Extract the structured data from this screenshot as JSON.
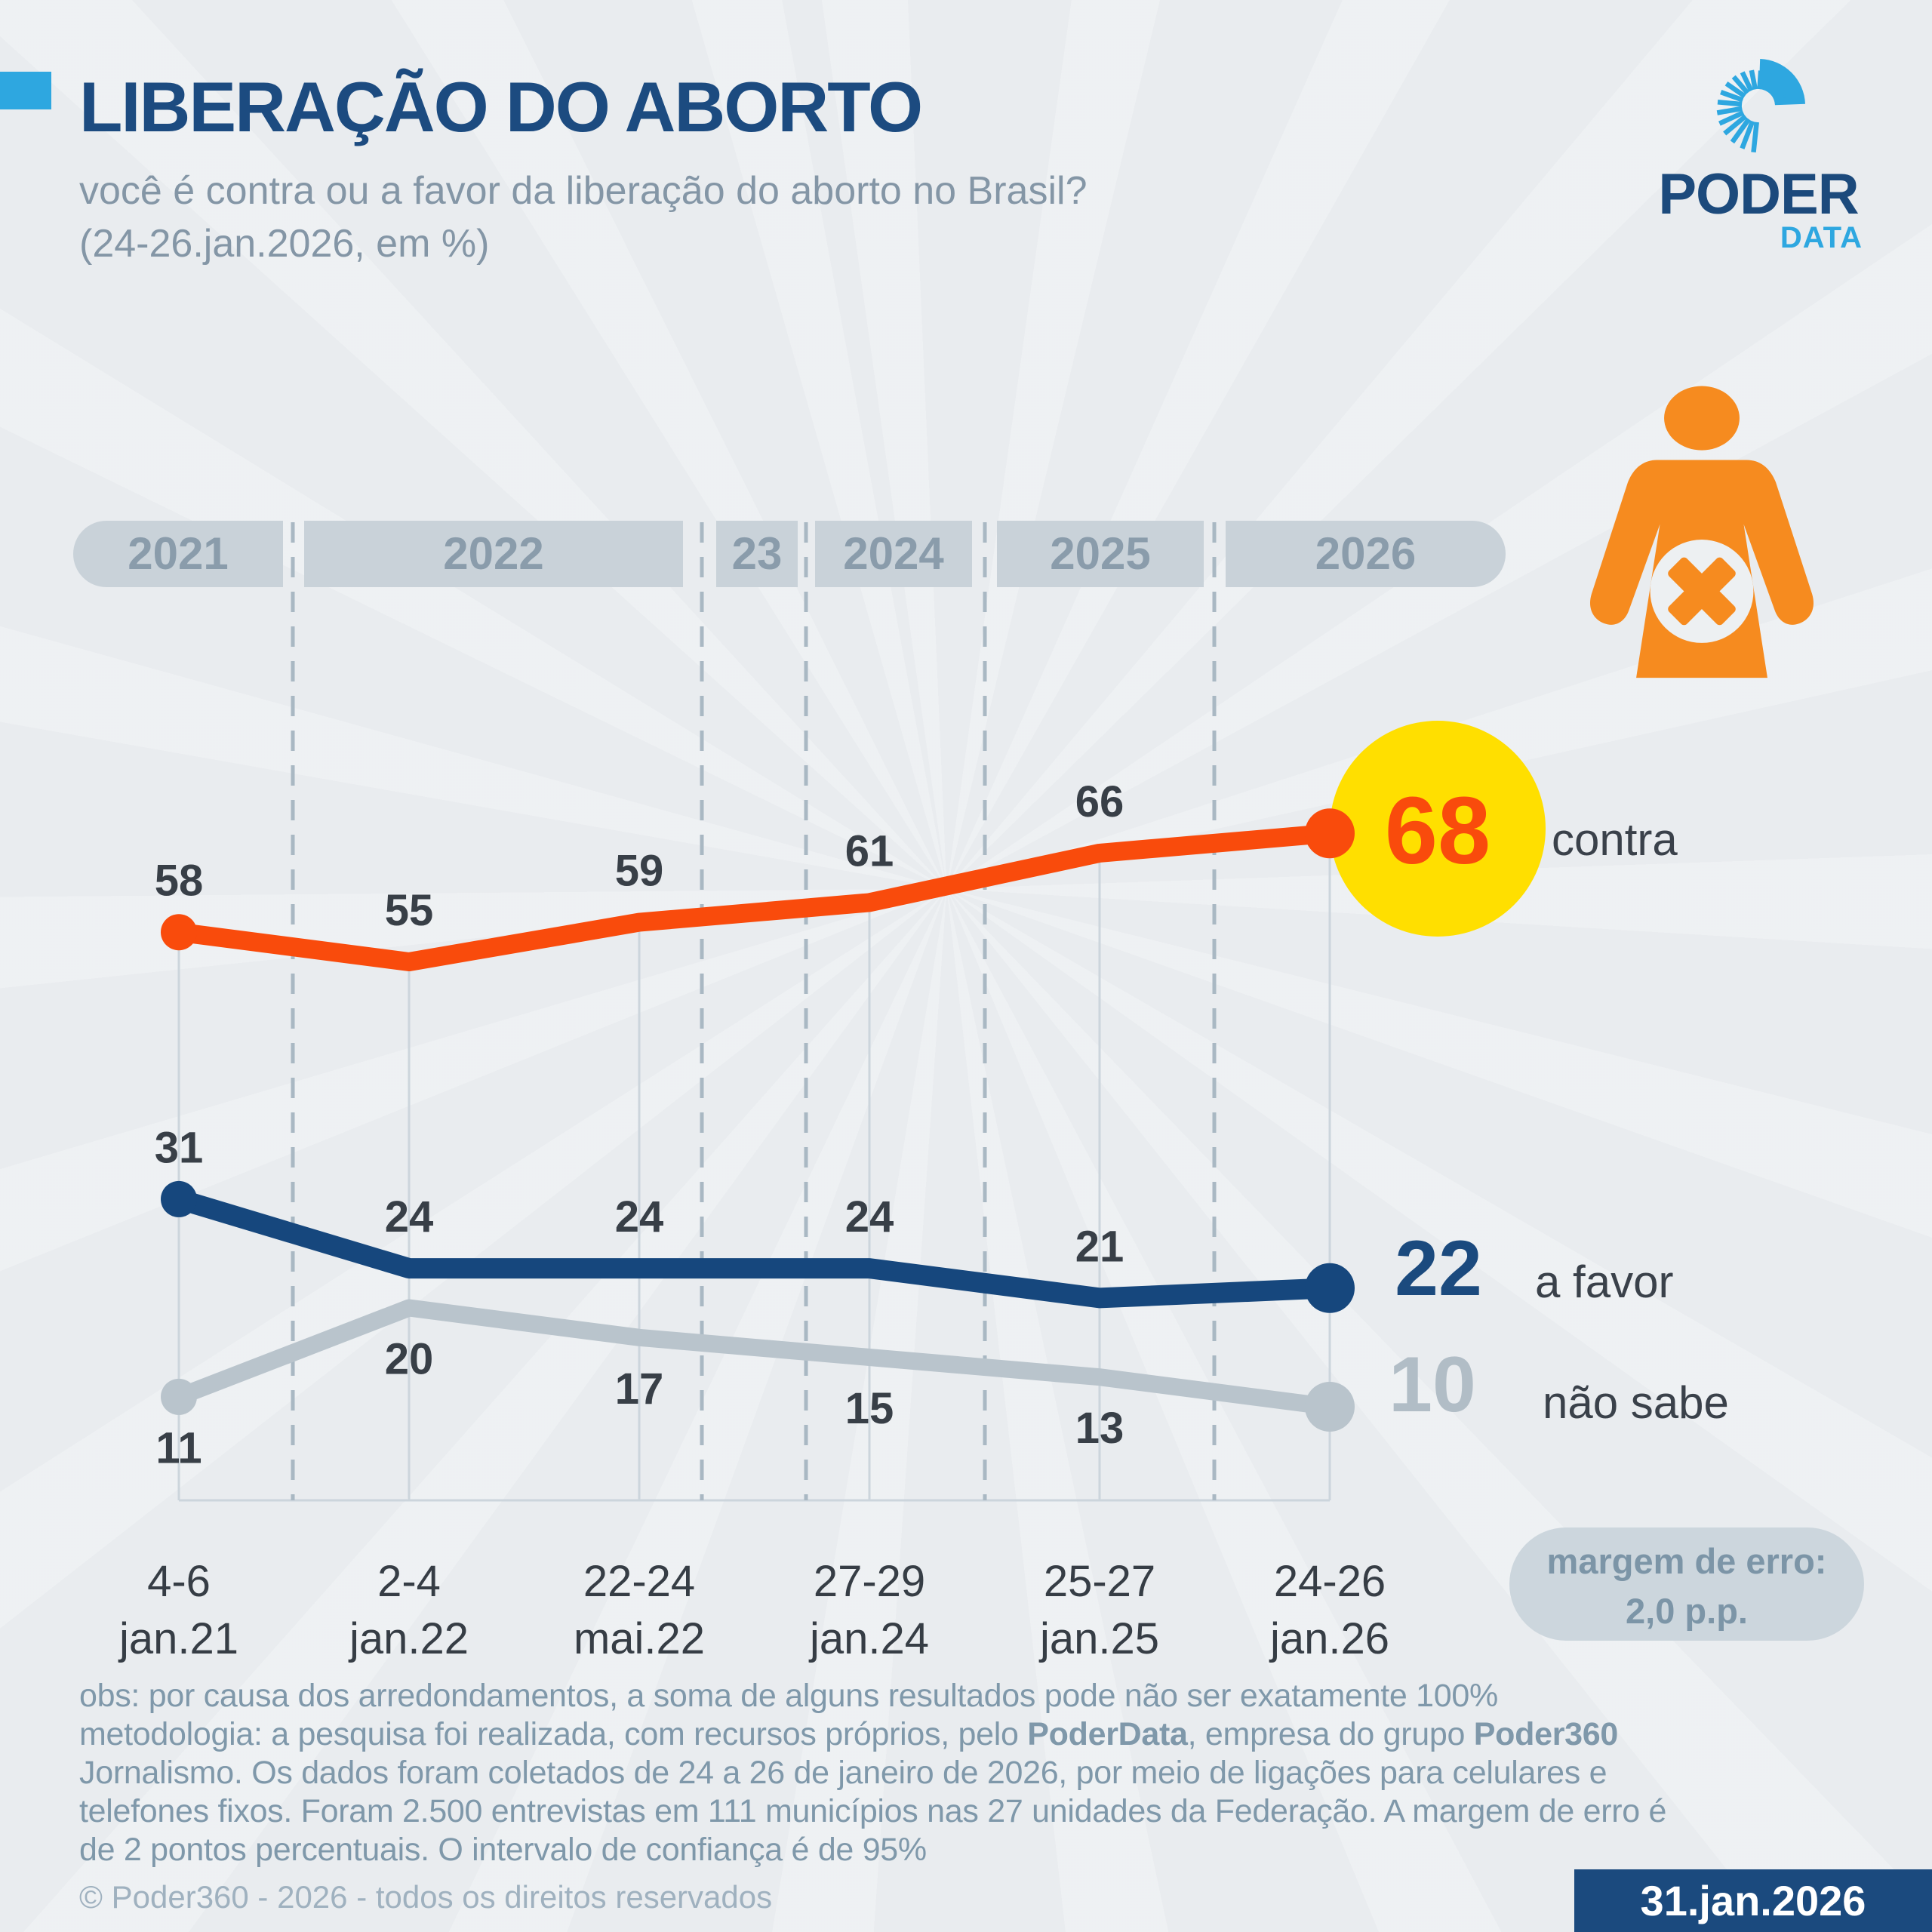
{
  "header": {
    "title": "LIBERAÇÃO DO ABORTO",
    "subtitle_line1": "você é contra ou a favor da liberação do aborto no Brasil?",
    "subtitle_line2": "(24-26.jan.2026, em %)",
    "accent_color": "#2ea7e0"
  },
  "logo": {
    "word": "PODER",
    "sub": "DATA"
  },
  "chart_data": {
    "type": "line",
    "title": "Liberação do aborto — contra ou a favor (em %)",
    "years": [
      "2021",
      "2022",
      "23",
      "2024",
      "2025",
      "2026"
    ],
    "x_labels": [
      [
        "4-6",
        "jan.21"
      ],
      [
        "2-4",
        "jan.22"
      ],
      [
        "22-24",
        "mai.22"
      ],
      [
        "27-29",
        "jan.24"
      ],
      [
        "25-27",
        "jan.25"
      ],
      [
        "24-26",
        "jan.26"
      ]
    ],
    "series": [
      {
        "name": "contra",
        "color": "#f94b0c",
        "values": [
          58,
          55,
          59,
          61,
          66,
          68
        ]
      },
      {
        "name": "a favor",
        "color": "#16477d",
        "values": [
          31,
          24,
          24,
          24,
          21,
          22
        ]
      },
      {
        "name": "não sabe",
        "color": "#b9c4cc",
        "values": [
          11,
          20,
          17,
          15,
          13,
          10
        ]
      }
    ],
    "ylim": [
      0,
      100
    ],
    "grid": "dashed-year-separators",
    "legend_position": "right",
    "highlight": {
      "series": "contra",
      "value": 68,
      "circle_color": "#ffdf00"
    }
  },
  "error_badge": {
    "line1": "margem de erro:",
    "line2": "2,0 p.p."
  },
  "footnotes": {
    "line1": "obs: por causa dos arredondamentos, a soma de alguns resultados pode não ser exatamente 100%",
    "line2_pre": "metodologia: a pesquisa foi realizada, com recursos próprios, pelo ",
    "line2_bold1": "PoderData",
    "line2_mid": ", empresa do grupo ",
    "line2_bold2": "Poder360",
    "line3": "Jornalismo. Os dados foram coletados de 24 a 26 de janeiro de 2026, por meio de ligações para celulares e",
    "line4": "telefones fixos. Foram 2.500 entrevistas em 111 municípios nas 27 unidades da Federação. A margem de erro é",
    "line5": "de 2 pontos percentuais. O intervalo de confiança é de 95%"
  },
  "copyright": "© Poder360 - 2026 - todos os direitos reservados",
  "date_badge": "31.jan.2026",
  "colors": {
    "background": "#e9ecef",
    "title_blue": "#1c4b80",
    "accent_light_blue": "#2ea7e0",
    "orange_line": "#f94b0c",
    "icon_orange": "#f68b1f",
    "highlight_yellow": "#ffdf00",
    "band_gray": "#c9d2d9",
    "label_dark": "#383f47"
  }
}
